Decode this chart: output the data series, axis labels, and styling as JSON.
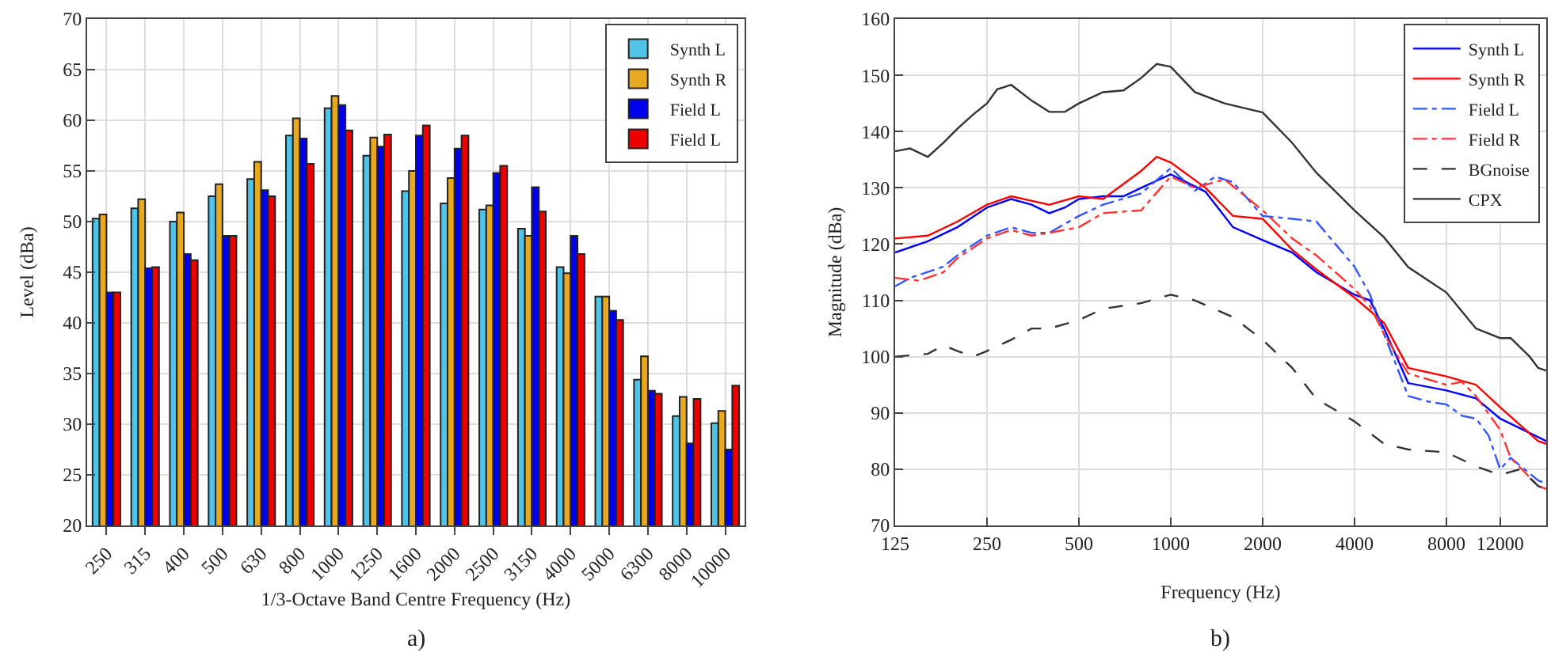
{
  "chart_data": [
    {
      "type": "bar",
      "xlabel": "1/3-Octave Band Centre Frequency (Hz)",
      "ylabel": "Level (dBa)",
      "annotations": [
        "a)"
      ],
      "categories": [
        "250",
        "315",
        "400",
        "500",
        "630",
        "800",
        "1000",
        "1250",
        "1600",
        "2000",
        "2500",
        "3150",
        "4000",
        "5000",
        "6300",
        "8000",
        "10000"
      ],
      "series": [
        {
          "name": "Synth L",
          "color": "#4fc3e8",
          "values": [
            50.3,
            51.3,
            50,
            52.5,
            54.2,
            58.5,
            61.2,
            56.5,
            53,
            51.8,
            51.2,
            49.3,
            45.5,
            42.6,
            34.4,
            30.8,
            30.1
          ]
        },
        {
          "name": "Synth R",
          "color": "#e8a820",
          "values": [
            50.7,
            52.2,
            50.9,
            53.7,
            55.9,
            60.2,
            62.4,
            58.3,
            55,
            54.3,
            51.6,
            48.6,
            44.9,
            42.6,
            36.7,
            32.7,
            31.3
          ]
        },
        {
          "name": "Field L",
          "color": "#0000ee",
          "values": [
            43,
            45.4,
            46.8,
            48.6,
            53.1,
            58.2,
            61.5,
            57.4,
            58.5,
            57.2,
            54.8,
            53.4,
            48.6,
            41.2,
            33.3,
            28.1,
            27.5
          ]
        },
        {
          "name": "Field L",
          "color": "#ee0000",
          "values": [
            43,
            45.5,
            46.2,
            48.6,
            52.5,
            55.7,
            59,
            58.6,
            59.5,
            58.5,
            55.5,
            51,
            46.8,
            40.3,
            33,
            32.5,
            33.8
          ]
        }
      ],
      "ylim": [
        20,
        70
      ],
      "yticks": [
        20,
        25,
        30,
        35,
        40,
        45,
        50,
        55,
        60,
        65,
        70
      ],
      "grid": true,
      "legend": "top right"
    },
    {
      "type": "line",
      "xlabel": "Frequency (Hz)",
      "ylabel": "Magnitude (dBa)",
      "annotations": [
        "b)"
      ],
      "log": "x",
      "series": [
        {
          "name": "Synth L",
          "color": "#0000ff",
          "line_style": "solid",
          "x": [
            125,
            160,
            200,
            250,
            300,
            350,
            400,
            450,
            500,
            600,
            700,
            800,
            1000,
            1300,
            1600,
            2000,
            2500,
            3000,
            4000,
            4500,
            5000,
            6000,
            8000,
            10000,
            12000,
            16000,
            17000
          ],
          "values": [
            118.5,
            120.5,
            123,
            126.5,
            128,
            127,
            125.5,
            126.5,
            128,
            128.5,
            128.5,
            130,
            132.4,
            129.3,
            123,
            120.7,
            118.5,
            115,
            111,
            110,
            105,
            95.3,
            94,
            92.6,
            89,
            85.7,
            85
          ]
        },
        {
          "name": "Synth R",
          "color": "#ff0000",
          "line_style": "solid",
          "x": [
            125,
            160,
            200,
            250,
            300,
            400,
            500,
            600,
            800,
            900,
            1000,
            1300,
            1600,
            2000,
            2500,
            3000,
            4000,
            5000,
            6000,
            8000,
            10000,
            12000,
            16000,
            17000
          ],
          "values": [
            121,
            121.5,
            124,
            127,
            128.5,
            127,
            128.5,
            128,
            133,
            135.5,
            134.5,
            130,
            125,
            124.5,
            119,
            115.5,
            110.5,
            106,
            98,
            96.5,
            95,
            91,
            85,
            84.5
          ]
        },
        {
          "name": "Field L",
          "color": "#3355ff",
          "line_style": "dashdot",
          "x": [
            125,
            140,
            180,
            200,
            250,
            300,
            350,
            400,
            500,
            600,
            800,
            1000,
            1200,
            1400,
            1600,
            2000,
            2500,
            3000,
            4000,
            4500,
            5000,
            6000,
            7000,
            8000,
            9000,
            10000,
            11000,
            12000,
            13000,
            16000,
            17000
          ],
          "values": [
            112.5,
            114,
            116,
            118,
            121.5,
            123,
            122,
            122,
            125,
            127,
            129,
            133.5,
            129.5,
            132,
            131,
            125,
            124.5,
            124,
            116,
            111,
            104,
            93,
            92,
            91.5,
            89.5,
            89,
            86,
            80,
            82,
            78,
            77.5
          ]
        },
        {
          "name": "Field R",
          "color": "#ff3333",
          "line_style": "dashdot",
          "x": [
            125,
            150,
            180,
            200,
            250,
            300,
            350,
            400,
            500,
            600,
            800,
            1000,
            1200,
            1500,
            2000,
            2500,
            3000,
            4000,
            4500,
            5000,
            6000,
            8000,
            9000,
            10000,
            12000,
            13000,
            16000,
            17000
          ],
          "values": [
            114,
            113.5,
            115,
            117.5,
            121,
            122.5,
            121.5,
            122,
            123,
            125.5,
            126,
            132,
            130,
            131.5,
            126,
            121,
            118,
            112,
            109,
            104,
            97,
            95,
            95.5,
            93,
            87,
            82,
            77,
            76.5
          ]
        },
        {
          "name": "BGnoise",
          "color": "#333333",
          "line_style": "dashed",
          "x": [
            125,
            160,
            180,
            200,
            225,
            250,
            300,
            350,
            400,
            500,
            600,
            800,
            1000,
            1200,
            1600,
            2000,
            2500,
            3000,
            4000,
            5000,
            6000,
            8000,
            10000,
            12000,
            14000,
            16000,
            17000
          ],
          "values": [
            100,
            100.5,
            102,
            101,
            100,
            101,
            103,
            105,
            105,
            106.5,
            108.5,
            109.5,
            111,
            110,
            107,
            103,
            98,
            92.5,
            88.5,
            84.5,
            83.5,
            83,
            80.5,
            79,
            80,
            77,
            76.5
          ]
        },
        {
          "name": "CPX",
          "color": "#333333",
          "line_style": "solid",
          "x": [
            125,
            140,
            160,
            180,
            200,
            225,
            250,
            270,
            300,
            350,
            400,
            450,
            500,
            600,
            700,
            800,
            900,
            1000,
            1200,
            1500,
            2000,
            2500,
            3000,
            4000,
            5000,
            6000,
            8000,
            10000,
            12000,
            13000,
            15000,
            16000,
            17000
          ],
          "values": [
            136.5,
            137,
            135.5,
            138,
            140.5,
            143,
            145,
            147.5,
            148.3,
            145.5,
            143.5,
            143.5,
            145,
            147,
            147.3,
            149.5,
            152,
            151.5,
            147,
            145,
            143.4,
            138,
            132.7,
            126,
            121.2,
            115.9,
            111.4,
            105,
            103.3,
            103.3,
            100,
            98,
            97.5
          ]
        }
      ],
      "xlim": [
        125,
        17000
      ],
      "xticks": [
        125,
        250,
        500,
        1000,
        2000,
        4000,
        8000,
        12000
      ],
      "ylim": [
        70,
        160
      ],
      "yticks": [
        70,
        80,
        90,
        100,
        110,
        120,
        130,
        140,
        150,
        160
      ],
      "grid": true,
      "legend": "top right"
    }
  ]
}
